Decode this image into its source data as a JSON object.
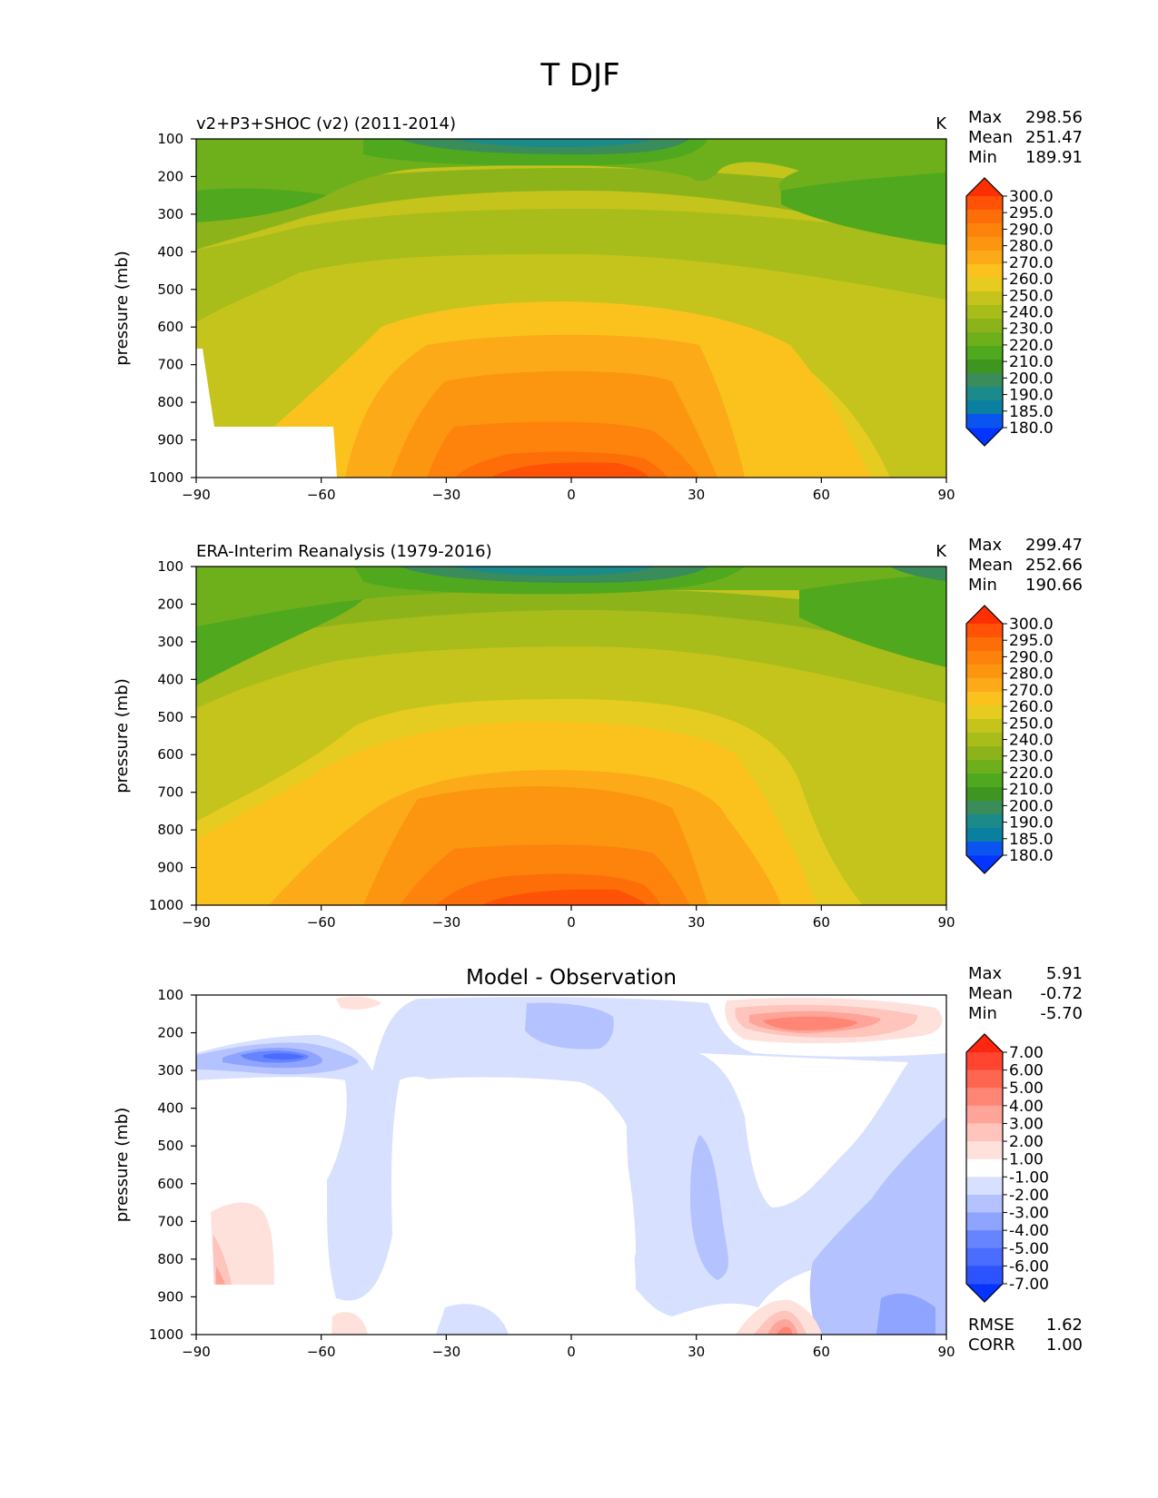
{
  "figure": {
    "title": "T DJF"
  },
  "axis": {
    "ylabel": "pressure (mb)",
    "xticks": [
      "−90",
      "−60",
      "−30",
      "0",
      "30",
      "60",
      "90"
    ],
    "yticks": [
      "100",
      "200",
      "300",
      "400",
      "500",
      "600",
      "700",
      "800",
      "900",
      "1000"
    ]
  },
  "colors": {
    "abs_colorbar": [
      "#0533ff",
      "#0a55f0",
      "#0b7fa0",
      "#1b8a8a",
      "#3a8c5a",
      "#3e9620",
      "#50a81e",
      "#6eb01c",
      "#8cb41a",
      "#a8bc1a",
      "#c4c41c",
      "#e6cc20",
      "#fbc21e",
      "#fcaa18",
      "#fc9610",
      "#fd830c",
      "#fe6e08",
      "#ff5206",
      "#ff2f04"
    ],
    "diff_colorbar": [
      "#0533ff",
      "#2d53ff",
      "#4a6cff",
      "#6684ff",
      "#8ea4ff",
      "#b4c2ff",
      "#d8e0ff",
      "#ffffff",
      "#ffe1dc",
      "#ffc4bb",
      "#ffa498",
      "#ff8575",
      "#ff6652",
      "#ff4530",
      "#ff2710"
    ]
  },
  "chart_data": [
    {
      "type": "heatmap",
      "title": "v2+P3+SHOC (v2) (2011-2014)",
      "units": "K",
      "stats": [
        {
          "label": "Max",
          "value": "298.56"
        },
        {
          "label": "Mean",
          "value": "251.47"
        },
        {
          "label": "Min",
          "value": "189.91"
        }
      ],
      "xlabel": "",
      "ylabel": "pressure (mb)",
      "xlim": [
        -90,
        90
      ],
      "ylim": [
        1000,
        100
      ],
      "levels": [
        "300.0",
        "295.0",
        "290.0",
        "280.0",
        "270.0",
        "260.0",
        "250.0",
        "240.0",
        "230.0",
        "220.0",
        "210.0",
        "200.0",
        "190.0",
        "185.0",
        "180.0"
      ],
      "missing_region": "surface below ~870 mb south of 60S"
    },
    {
      "type": "heatmap",
      "title": "ERA-Interim Reanalysis (1979-2016)",
      "units": "K",
      "stats": [
        {
          "label": "Max",
          "value": "299.47"
        },
        {
          "label": "Mean",
          "value": "252.66"
        },
        {
          "label": "Min",
          "value": "190.66"
        }
      ],
      "xlabel": "",
      "ylabel": "pressure (mb)",
      "xlim": [
        -90,
        90
      ],
      "ylim": [
        1000,
        100
      ],
      "levels": [
        "300.0",
        "295.0",
        "290.0",
        "280.0",
        "270.0",
        "260.0",
        "250.0",
        "240.0",
        "230.0",
        "220.0",
        "210.0",
        "200.0",
        "190.0",
        "185.0",
        "180.0"
      ]
    },
    {
      "type": "heatmap",
      "title": "Model - Observation",
      "units": "",
      "stats": [
        {
          "label": "Max",
          "value": "5.91"
        },
        {
          "label": "Mean",
          "value": "-0.72"
        },
        {
          "label": "Min",
          "value": "-5.70"
        }
      ],
      "metrics": [
        {
          "label": "RMSE",
          "value": "1.62"
        },
        {
          "label": "CORR",
          "value": "1.00"
        }
      ],
      "xlabel": "",
      "ylabel": "pressure (mb)",
      "xlim": [
        -90,
        90
      ],
      "ylim": [
        1000,
        100
      ],
      "levels": [
        "7.00",
        "6.00",
        "5.00",
        "4.00",
        "3.00",
        "2.00",
        "1.00",
        "-1.00",
        "-2.00",
        "-3.00",
        "-4.00",
        "-5.00",
        "-6.00",
        "-7.00"
      ]
    }
  ]
}
